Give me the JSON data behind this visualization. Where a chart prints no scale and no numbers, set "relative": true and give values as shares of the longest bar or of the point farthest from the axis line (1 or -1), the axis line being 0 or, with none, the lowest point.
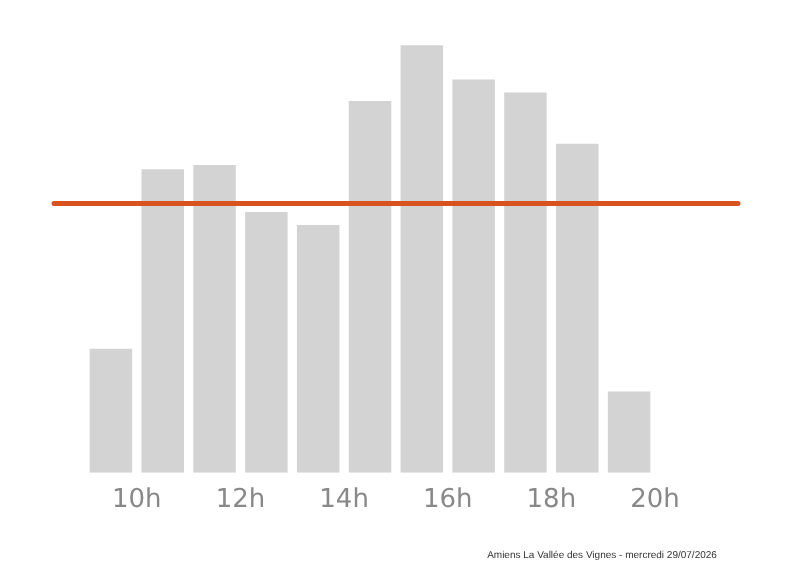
{
  "chart_data": {
    "type": "bar",
    "relative": true,
    "x": [
      9.5,
      10.5,
      11.5,
      12.5,
      13.5,
      14.5,
      15.5,
      16.5,
      17.5,
      18.5,
      19.5
    ],
    "xlim": [
      9,
      20
    ],
    "values": [
      0.29,
      0.71,
      0.72,
      0.61,
      0.58,
      0.87,
      1,
      0.92,
      0.89,
      0.77,
      0.19
    ],
    "color": "#d3d3d3",
    "xticks": [
      {
        "value": 10,
        "label": "10h"
      },
      {
        "value": 12,
        "label": "12h"
      },
      {
        "value": 14,
        "label": "14h"
      },
      {
        "value": 16,
        "label": "16h"
      },
      {
        "value": 18,
        "label": "18h"
      },
      {
        "value": 20,
        "label": "20h"
      }
    ],
    "ref_lines": [
      {
        "axis": "y",
        "value": 0.63,
        "color": "#d9531e"
      }
    ],
    "annotations": [
      "Amiens La Vallée des Vignes - mercredi 29/07/2026"
    ],
    "grid": false,
    "legend": false,
    "tick_labels": "x"
  }
}
